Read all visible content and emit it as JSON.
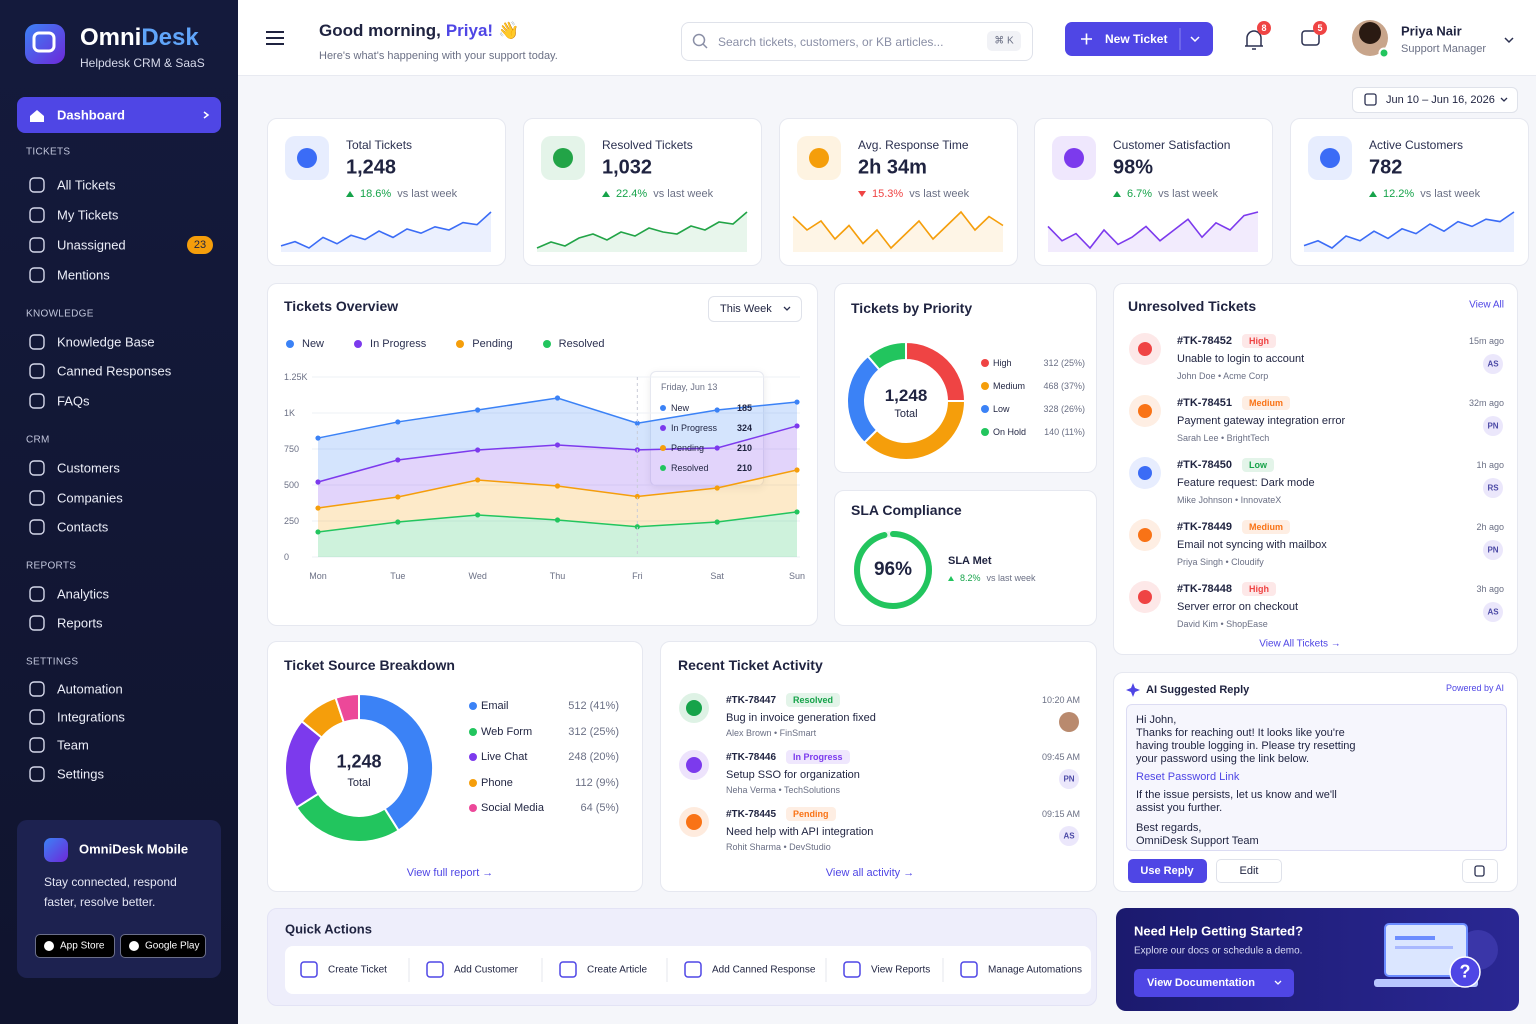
{
  "brand": {
    "name_a": "Omni",
    "name_b": "Desk",
    "tagline": "Helpdesk CRM & SaaS"
  },
  "nav": {
    "active": "Dashboard",
    "sections": [
      {
        "title": "TICKETS",
        "items": [
          {
            "label": "All Tickets"
          },
          {
            "label": "My Tickets"
          },
          {
            "label": "Unassigned",
            "badge": "23"
          },
          {
            "label": "Mentions"
          }
        ]
      },
      {
        "title": "KNOWLEDGE",
        "items": [
          {
            "label": "Knowledge Base"
          },
          {
            "label": "Canned Responses"
          },
          {
            "label": "FAQs"
          }
        ]
      },
      {
        "title": "CRM",
        "items": [
          {
            "label": "Customers"
          },
          {
            "label": "Companies"
          },
          {
            "label": "Contacts"
          }
        ]
      },
      {
        "title": "REPORTS",
        "items": [
          {
            "label": "Analytics"
          },
          {
            "label": "Reports"
          }
        ]
      },
      {
        "title": "SETTINGS",
        "items": [
          {
            "label": "Automation"
          },
          {
            "label": "Integrations"
          },
          {
            "label": "Team"
          },
          {
            "label": "Settings"
          }
        ]
      }
    ]
  },
  "promo": {
    "title": "OmniDesk Mobile",
    "lines": [
      "Stay connected, respond",
      "faster, resolve better."
    ],
    "buttons": [
      "App Store",
      "Google Play"
    ]
  },
  "header": {
    "greeting": "Good morning,",
    "name": "Priya!",
    "wave": "👋",
    "subtitle": "Here's what's happening with your support today.",
    "search": "Search tickets, customers, or KB articles...",
    "shortcut": "⌘ K",
    "new_button": "New Ticket",
    "notifications": "8",
    "messages": "5",
    "user_name": "Priya Nair",
    "user_role": "Support Manager",
    "date_range": "Jun 10 – Jun 16, 2026"
  },
  "kpis": [
    {
      "title": "Total Tickets",
      "value": "1,248",
      "change": "18.6%",
      "compare": "vs last week",
      "up": true,
      "color": "#3b6cf6",
      "trend": [
        30,
        34,
        28,
        38,
        32,
        40,
        36,
        44,
        38,
        46,
        42,
        48,
        45,
        52,
        50,
        62
      ]
    },
    {
      "title": "Resolved Tickets",
      "value": "1,032",
      "change": "22.4%",
      "compare": "vs last week",
      "up": true,
      "color": "#22a447",
      "trend": [
        30,
        36,
        32,
        40,
        44,
        38,
        46,
        42,
        50,
        46,
        44,
        52,
        48,
        56,
        54,
        66
      ]
    },
    {
      "title": "Avg. Response Time",
      "value": "2h 34m",
      "change": "15.3%",
      "compare": "vs last week",
      "up": false,
      "color": "#f59e0b",
      "trend": [
        50,
        44,
        48,
        40,
        46,
        38,
        44,
        36,
        42,
        48,
        40,
        46,
        52,
        44,
        50,
        46
      ]
    },
    {
      "title": "Customer Satisfaction",
      "value": "98%",
      "change": "6.7%",
      "compare": "vs last week",
      "up": true,
      "color": "#7c3aed",
      "trend": [
        50,
        42,
        46,
        38,
        48,
        40,
        44,
        50,
        42,
        48,
        54,
        44,
        52,
        48,
        56,
        58
      ]
    },
    {
      "title": "Active Customers",
      "value": "782",
      "change": "12.2%",
      "compare": "vs last week",
      "up": true,
      "color": "#3b6cf6",
      "trend": [
        36,
        40,
        34,
        44,
        40,
        48,
        42,
        50,
        46,
        54,
        48,
        56,
        52,
        58,
        56,
        64
      ]
    }
  ],
  "chart_data": [
    {
      "type": "stacked_area",
      "title": "Tickets Overview",
      "period": "This Week",
      "categories": [
        "Mon",
        "Tue",
        "Wed",
        "Thu",
        "Fri",
        "Sat",
        "Sun"
      ],
      "series": [
        {
          "name": "New",
          "color": "#3b82f6",
          "values": [
            305,
            264,
            278,
            326,
            185,
            264,
            166
          ]
        },
        {
          "name": "In Progress",
          "color": "#7c3aed",
          "values": [
            181,
            257,
            208,
            285,
            324,
            278,
            306
          ]
        },
        {
          "name": "Pending",
          "color": "#f59e0b",
          "values": [
            166,
            174,
            243,
            236,
            210,
            236,
            291
          ]
        },
        {
          "name": "Resolved",
          "color": "#22c55e",
          "values": [
            174,
            243,
            292,
            257,
            210,
            243,
            313
          ]
        }
      ],
      "ylim": [
        0,
        1250
      ],
      "yticks": [
        0,
        250,
        500,
        750,
        {
          "value": 1000,
          "label": "1K"
        },
        {
          "value": 1250,
          "label": "1.25K"
        }
      ],
      "tooltip": {
        "title": "Friday, Jun 13",
        "index": 4
      }
    },
    {
      "type": "pie",
      "title": "Tickets by Priority",
      "center_value": "1,248",
      "center_label": "Total",
      "categories": [
        "High",
        "Medium",
        "Low",
        "On Hold"
      ],
      "values": [
        312,
        468,
        328,
        140
      ],
      "value_labels": [
        "312 (25%)",
        "468 (37%)",
        "328 (26%)",
        "140 (11%)"
      ],
      "colors": [
        "#ef4444",
        "#f59e0b",
        "#3b82f6",
        "#22c55e"
      ]
    },
    {
      "type": "gauge",
      "title": "SLA Compliance",
      "value": 96,
      "value_label": "96%",
      "ylim": [
        0,
        100
      ],
      "label": "SLA Met",
      "change": "8.2%",
      "compare": "vs last week",
      "color": "#22c55e"
    },
    {
      "type": "pie",
      "title": "Ticket Source Breakdown",
      "center_value": "1,248",
      "center_label": "Total",
      "categories": [
        "Email",
        "Web Form",
        "Live Chat",
        "Phone",
        "Social Media"
      ],
      "values": [
        512,
        312,
        248,
        112,
        64
      ],
      "value_labels": [
        "512 (41%)",
        "312 (25%)",
        "248 (20%)",
        "112 (9%)",
        "64 (5%)"
      ],
      "colors": [
        "#3b82f6",
        "#22c55e",
        "#7c3aed",
        "#f59e0b",
        "#ec4899"
      ],
      "footer": "View full report →"
    }
  ],
  "unresolved": {
    "title": "Unresolved Tickets",
    "view_all": "View All",
    "footer": "View All Tickets →",
    "tickets": [
      {
        "id": "#TK-78452",
        "priority": "High",
        "color": "#ef4444",
        "icon_color": "#ef4444",
        "subject": "Unable to login to account",
        "contact": "John Doe • Acme Corp",
        "time": "15m ago",
        "initials": "AS"
      },
      {
        "id": "#TK-78451",
        "priority": "Medium",
        "color": "#f97316",
        "icon_color": "#f97316",
        "subject": "Payment gateway integration error",
        "contact": "Sarah Lee • BrightTech",
        "time": "32m ago",
        "initials": "PN"
      },
      {
        "id": "#TK-78450",
        "priority": "Low",
        "color": "#16a34a",
        "icon_color": "#3b6cf6",
        "subject": "Feature request: Dark mode",
        "contact": "Mike Johnson • InnovateX",
        "time": "1h ago",
        "initials": "RS"
      },
      {
        "id": "#TK-78449",
        "priority": "Medium",
        "color": "#f97316",
        "icon_color": "#f97316",
        "subject": "Email not syncing with mailbox",
        "contact": "Priya Singh • Cloudify",
        "time": "2h ago",
        "initials": "PN"
      },
      {
        "id": "#TK-78448",
        "priority": "High",
        "color": "#ef4444",
        "icon_color": "#ef4444",
        "subject": "Server error on checkout",
        "contact": "David Kim • ShopEase",
        "time": "3h ago",
        "initials": "AS"
      }
    ]
  },
  "activity": {
    "title": "Recent Ticket Activity",
    "footer": "View all activity →",
    "items": [
      {
        "id": "#TK-78447",
        "status": "Resolved",
        "color": "#16a34a",
        "subject": "Bug in invoice generation fixed",
        "contact": "Alex Brown • FinSmart",
        "time": "10:20 AM"
      },
      {
        "id": "#TK-78446",
        "status": "In Progress",
        "color": "#7c3aed",
        "subject": "Setup SSO for organization",
        "contact": "Neha Verma • TechSolutions",
        "time": "09:45 AM",
        "initials": "PN"
      },
      {
        "id": "#TK-78445",
        "status": "Pending",
        "color": "#f97316",
        "subject": "Need help with API integration",
        "contact": "Rohit Sharma • DevStudio",
        "time": "09:15 AM",
        "initials": "AS"
      }
    ]
  },
  "ai": {
    "title": "AI Suggested Reply",
    "powered": "Powered by AI",
    "para1": [
      "Hi John,",
      "Thanks for reaching out! It looks like you're",
      "having trouble logging in. Please try resetting",
      "your password using the link below."
    ],
    "link": "Reset Password Link",
    "para2": [
      "If the issue persists, let us know and we'll",
      "assist you further."
    ],
    "para3": [
      "Best regards,",
      "OmniDesk Support Team"
    ],
    "use": "Use Reply",
    "edit": "Edit"
  },
  "quick": {
    "title": "Quick Actions",
    "items": [
      "Create Ticket",
      "Add Customer",
      "Create Article",
      "Add Canned Response",
      "View Reports",
      "Manage Automations"
    ]
  },
  "help": {
    "title": "Need Help Getting Started?",
    "text": "Explore our docs or schedule a demo.",
    "button": "View Documentation",
    "icon": "?"
  }
}
